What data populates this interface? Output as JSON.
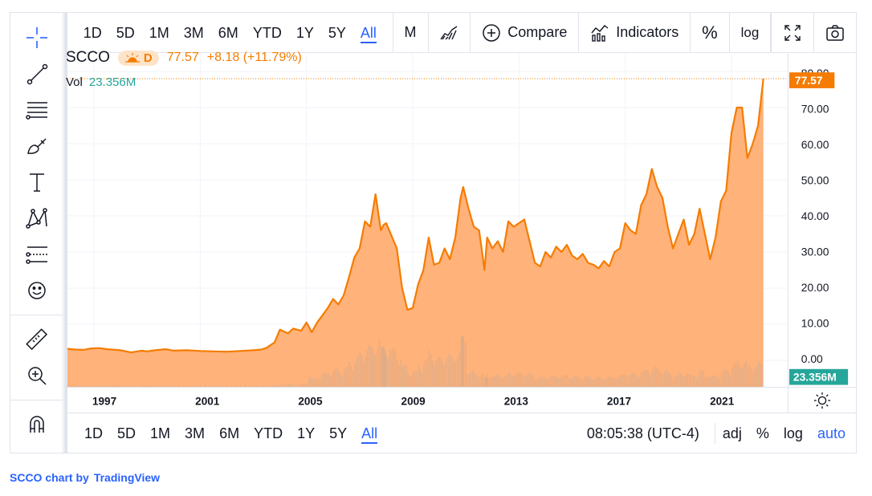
{
  "timeframes": [
    "1D",
    "5D",
    "1M",
    "3M",
    "6M",
    "YTD",
    "1Y",
    "5Y",
    "All"
  ],
  "active_timeframe": "All",
  "toolbar": {
    "interval": "M",
    "compare_label": "Compare",
    "indicators_label": "Indicators",
    "percent_label": "%",
    "log_label": "log"
  },
  "legend": {
    "symbol": "SCCO",
    "interval_badge": "D",
    "last": "77.57",
    "change": "+8.18 (+11.79%)",
    "vol_label": "Vol",
    "vol_value": "23.356M"
  },
  "bottom": {
    "clock": "08:05:38 (UTC-4)",
    "adj": "adj",
    "percent": "%",
    "log": "log",
    "auto": "auto"
  },
  "attribution": {
    "prefix": "SCCO chart by",
    "brand": "TradingView"
  },
  "colors": {
    "line": "#f57c00",
    "area": "#ffb27a",
    "volume": "#c9a88f",
    "volume_badge": "#26a69a",
    "accent": "#2962ff"
  },
  "chart_data": {
    "type": "area",
    "title": "SCCO",
    "xlabel": "",
    "ylabel": "",
    "x_ticks": [
      "1997",
      "2001",
      "2005",
      "2009",
      "2013",
      "2017",
      "2021"
    ],
    "y_ticks": [
      "80.00",
      "70.00",
      "60.00",
      "50.00",
      "40.00",
      "30.00",
      "20.00",
      "10.00",
      "0.00"
    ],
    "ylim": [
      0,
      80
    ],
    "xlim": [
      1996.0,
      2022.3
    ],
    "last_price_label": "77.57",
    "volume_label": "23.356M",
    "series": [
      {
        "x": [
          1996.0,
          1996.3,
          1996.6,
          1996.9,
          1997.2,
          1997.5,
          1997.8,
          1998.0,
          1998.4,
          1998.8,
          1999.0,
          1999.3,
          1999.7,
          2000.0,
          2000.5,
          2001.0,
          2001.5,
          2002.0,
          2002.5,
          2003.0,
          2003.3,
          2003.5,
          2003.8,
          2004.0,
          2004.3,
          2004.5,
          2004.8,
          2005.0,
          2005.2,
          2005.4,
          2005.6,
          2005.8,
          2006.0,
          2006.2,
          2006.4,
          2006.6,
          2006.8,
          2007.0,
          2007.2,
          2007.4,
          2007.6,
          2007.8,
          2007.9,
          2008.0,
          2008.2,
          2008.4,
          2008.6,
          2008.8,
          2009.0,
          2009.2,
          2009.4,
          2009.6,
          2009.8,
          2010.0,
          2010.2,
          2010.4,
          2010.6,
          2010.8,
          2010.9,
          2011.1,
          2011.3,
          2011.5,
          2011.7,
          2011.8,
          2012.0,
          2012.2,
          2012.4,
          2012.6,
          2012.8,
          2013.0,
          2013.2,
          2013.4,
          2013.6,
          2013.8,
          2014.0,
          2014.2,
          2014.4,
          2014.6,
          2014.8,
          2015.0,
          2015.2,
          2015.4,
          2015.6,
          2015.8,
          2016.0,
          2016.2,
          2016.4,
          2016.6,
          2016.8,
          2017.0,
          2017.2,
          2017.4,
          2017.6,
          2017.8,
          2018.0,
          2018.2,
          2018.4,
          2018.6,
          2018.8,
          2019.0,
          2019.2,
          2019.4,
          2019.6,
          2019.8,
          2020.0,
          2020.2,
          2020.4,
          2020.6,
          2020.8,
          2021.0,
          2021.2,
          2021.4,
          2021.6,
          2021.8,
          2022.0,
          2022.2
        ],
        "values": [
          3.2,
          3.0,
          2.9,
          3.3,
          3.4,
          3.1,
          2.9,
          2.8,
          2.2,
          2.7,
          2.5,
          2.8,
          3.1,
          2.7,
          2.8,
          2.6,
          2.5,
          2.4,
          2.6,
          2.8,
          3.0,
          3.5,
          5.0,
          8.5,
          7.5,
          8.8,
          8.2,
          10.5,
          7.8,
          10.5,
          12.5,
          14.5,
          17.0,
          15.5,
          18.0,
          23.0,
          28.5,
          31.0,
          38.5,
          37.0,
          46.0,
          36.0,
          37.5,
          38.0,
          34.5,
          31.0,
          20.0,
          14.0,
          14.5,
          21.0,
          25.0,
          34.0,
          26.5,
          27.0,
          31.0,
          28.0,
          34.0,
          45.0,
          48.0,
          42.0,
          37.0,
          36.0,
          25.0,
          34.0,
          31.0,
          33.0,
          30.0,
          38.5,
          37.0,
          38.0,
          39.0,
          33.0,
          27.0,
          26.0,
          30.0,
          28.5,
          31.5,
          30.0,
          32.0,
          29.0,
          28.0,
          29.5,
          27.0,
          26.5,
          25.5,
          27.5,
          26.0,
          30.0,
          31.0,
          38.0,
          36.0,
          35.0,
          43.0,
          46.0,
          53.0,
          48.0,
          45.0,
          37.0,
          31.0,
          35.0,
          39.0,
          32.0,
          35.0,
          42.0,
          35.0,
          28.0,
          34.0,
          44.0,
          47.0,
          63.0,
          70.0,
          70.0,
          56.0,
          60.0,
          65.0,
          78.0
        ]
      }
    ]
  }
}
